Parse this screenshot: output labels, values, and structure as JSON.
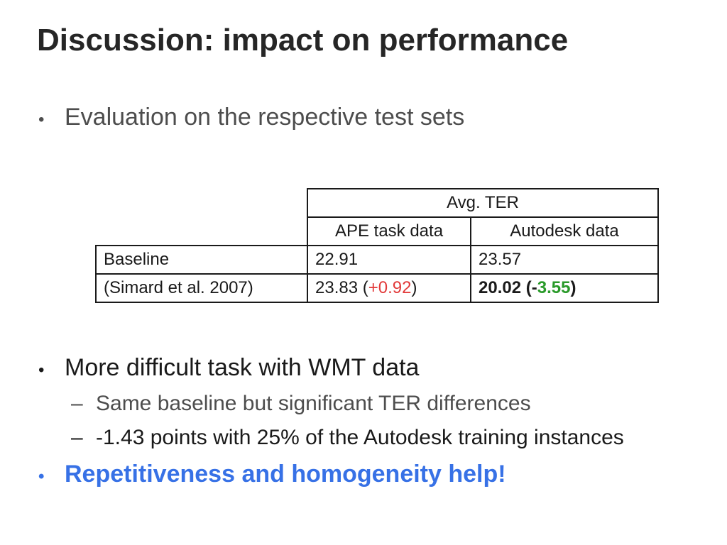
{
  "title": "Discussion: impact on performance",
  "bullets": {
    "b1": "Evaluation on the respective test sets",
    "b2": "More difficult task with WMT data",
    "b2_subs": [
      "Same baseline but significant TER differences",
      "-1.43 points with 25% of the Autodesk training instances"
    ],
    "b3": "Repetitiveness and homogeneity help!",
    "bullet_glyph": "•",
    "dash_glyph": "–"
  },
  "table": {
    "group_header": "Avg. TER",
    "columns": [
      "APE task data",
      "Autodesk data"
    ],
    "rows": [
      {
        "label": "Baseline",
        "ape": "22.91",
        "autodesk": "23.57"
      },
      {
        "label": "(Simard et al. 2007)",
        "ape_value": "23.83 (",
        "ape_delta": "+0.92",
        "ape_close": ")",
        "autodesk_value": "20.02 (",
        "autodesk_delta_sign": "-",
        "autodesk_delta": "3.55",
        "autodesk_close": ")"
      }
    ]
  },
  "colors": {
    "title": "#262626",
    "body_text": "#4d4d4d",
    "highlight_blue": "#3771e6",
    "delta_red": "#e23939",
    "delta_green": "#2a9a2a"
  }
}
